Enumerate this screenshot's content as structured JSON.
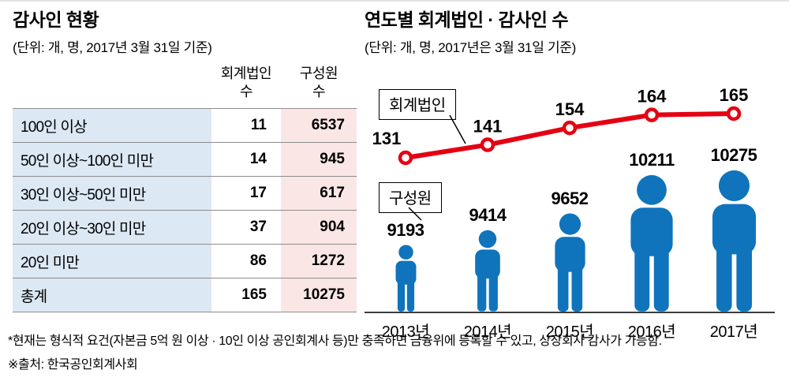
{
  "chart_data": [
    {
      "type": "table",
      "title": "감사인 현황",
      "subtitle": "(단위: 개, 명, 2017년 3월 31일 기준)",
      "columns": [
        "",
        "회계법인\n수",
        "구성원\n수"
      ],
      "rows": [
        [
          "100인 이상",
          11,
          6537
        ],
        [
          "50인 이상~100인 미만",
          14,
          945
        ],
        [
          "30인 이상~50인 미만",
          17,
          617
        ],
        [
          "20인 이상~30인 미만",
          37,
          904
        ],
        [
          "20인 미만",
          86,
          1272
        ],
        [
          "총계",
          165,
          10275
        ]
      ]
    },
    {
      "type": "line+pictogram",
      "title": "연도별 회계법인 · 감사인 수",
      "subtitle": "(단위: 개, 명, 2017년은 3월 31일 기준)",
      "categories": [
        "2013년",
        "2014년",
        "2015년",
        "2016년",
        "2017년"
      ],
      "series": [
        {
          "name": "회계법인",
          "chart": "line",
          "color": "#e50012",
          "values": [
            131,
            141,
            154,
            164,
            165
          ]
        },
        {
          "name": "구성원",
          "chart": "pictogram",
          "color": "#0f74bc",
          "values": [
            9193,
            9414,
            9652,
            10211,
            10275
          ]
        }
      ],
      "legend_position": "upper-left",
      "grid": false,
      "value_labels": "above"
    }
  ],
  "footnotes": [
    "*현재는 형식적 요건(자본금 5억 원 이상 · 10인 이상 공인회계사 등)만 충족하면 금융위에 등록할 수 있고, 상장회사 감사가 가능함.",
    "※출처: 한국공인회계사회"
  ]
}
